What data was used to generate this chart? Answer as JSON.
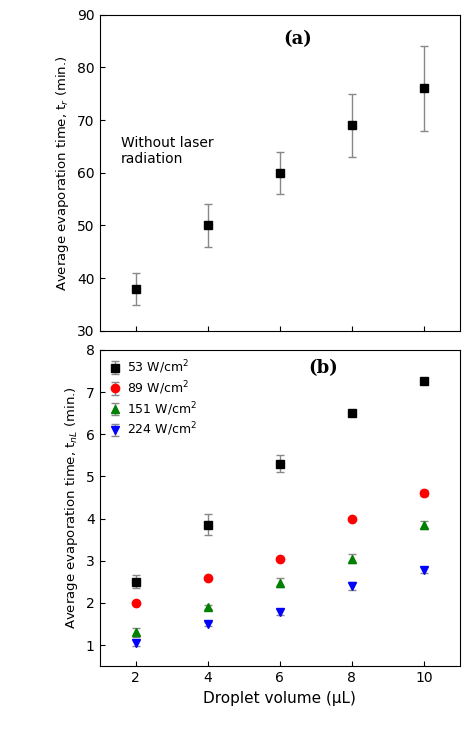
{
  "panel_a": {
    "x": [
      2,
      4,
      6,
      8,
      10
    ],
    "y": [
      38,
      50,
      60,
      69,
      76
    ],
    "yerr": [
      3,
      4,
      4,
      6,
      8
    ],
    "ylabel": "Average evaporation time, t$_r$ (min.)",
    "ylim": [
      30,
      90
    ],
    "yticks": [
      30,
      40,
      50,
      60,
      70,
      80,
      90
    ],
    "label": "(a)",
    "annotation": "Without laser\nradiation",
    "color": "black",
    "marker": "s"
  },
  "panel_b": {
    "series": [
      {
        "label": "53 W/cm$^2$",
        "x": [
          2,
          4,
          6,
          8,
          10
        ],
        "y": [
          2.5,
          3.85,
          5.3,
          6.5,
          7.25
        ],
        "yerr": [
          0.15,
          0.25,
          0.2,
          0.0,
          0.0
        ],
        "color": "black",
        "marker": "s"
      },
      {
        "label": "89 W/cm$^2$",
        "x": [
          2,
          4,
          6,
          8,
          10
        ],
        "y": [
          2.0,
          2.58,
          3.05,
          4.0,
          4.6
        ],
        "yerr": [
          0.0,
          0.0,
          0.0,
          0.0,
          0.07
        ],
        "color": "red",
        "marker": "o"
      },
      {
        "label": "151 W/cm$^2$",
        "x": [
          2,
          4,
          6,
          8,
          10
        ],
        "y": [
          1.3,
          1.9,
          2.48,
          3.05,
          3.85
        ],
        "yerr": [
          0.1,
          0.05,
          0.1,
          0.1,
          0.1
        ],
        "color": "green",
        "marker": "^"
      },
      {
        "label": "224 W/cm$^2$",
        "x": [
          2,
          4,
          6,
          8,
          10
        ],
        "y": [
          1.05,
          1.5,
          1.78,
          2.4,
          2.78
        ],
        "yerr": [
          0.07,
          0.05,
          0.07,
          0.1,
          0.07
        ],
        "color": "blue",
        "marker": "v"
      }
    ],
    "ylabel": "Average evaporation time, t$_{nL}$ (min.)",
    "xlabel": "Droplet volume (μL)",
    "ylim": [
      0.5,
      8
    ],
    "yticks": [
      1,
      2,
      3,
      4,
      5,
      6,
      7,
      8
    ],
    "label": "(b)"
  },
  "xlim": [
    1,
    11
  ],
  "xticks": [
    2,
    4,
    6,
    8,
    10
  ],
  "background_color": "#ffffff",
  "marker_size": 6,
  "capsize": 3,
  "elinewidth": 1,
  "linewidth": 0
}
